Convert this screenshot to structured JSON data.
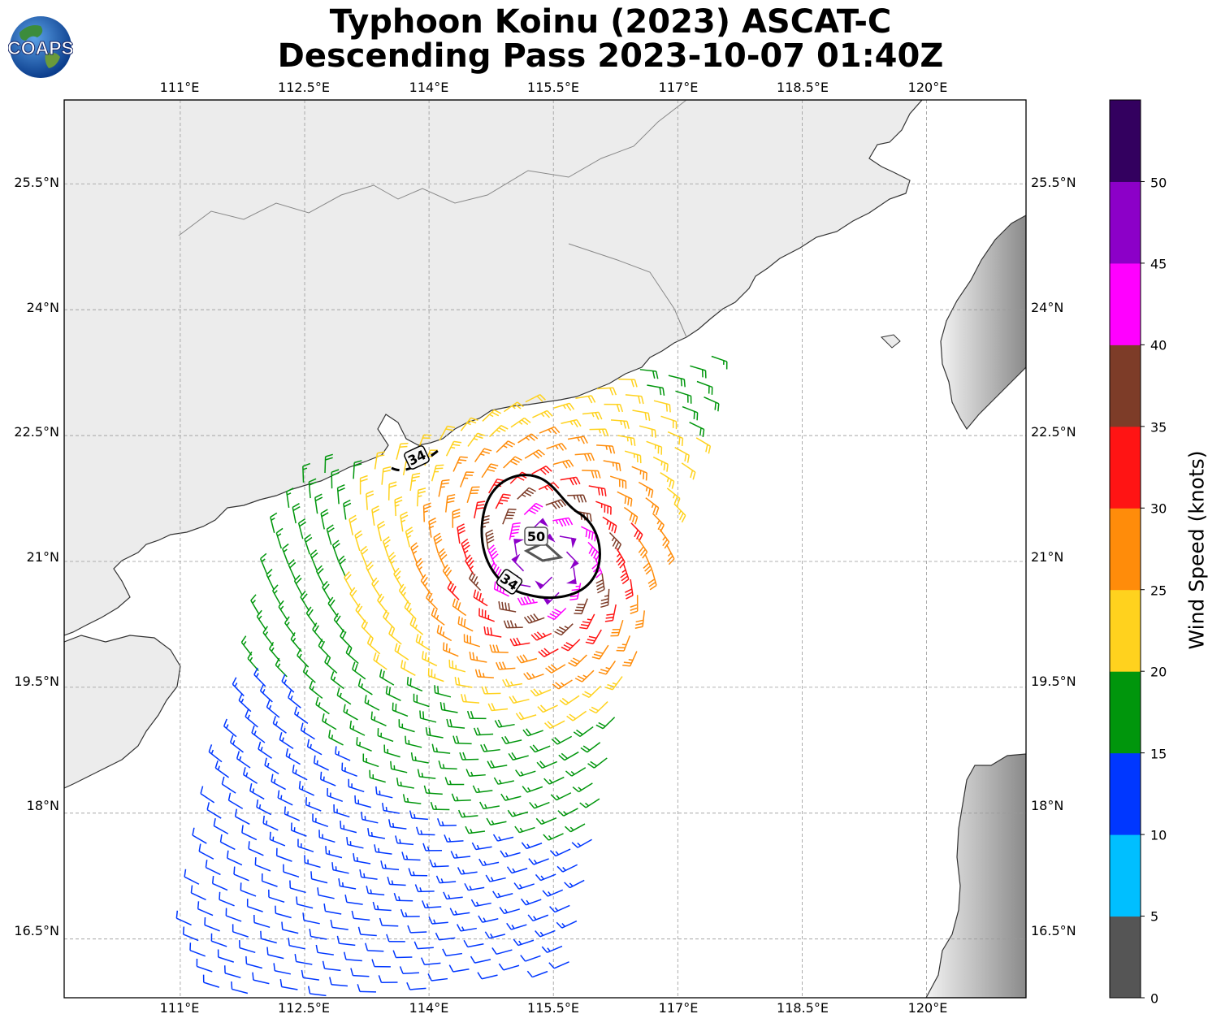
{
  "title": {
    "line1": "Typhoon Koinu (2023) ASCAT-C",
    "line2": "Descending Pass 2023-10-07 01:40Z"
  },
  "logo": {
    "text": "COAPS",
    "icon": "globe-icon"
  },
  "map": {
    "lon_ticks": [
      "111°E",
      "112.5°E",
      "114°E",
      "115.5°E",
      "117°E",
      "118.5°E",
      "120°E"
    ],
    "lat_ticks": [
      "25.5°N",
      "24°N",
      "22.5°N",
      "21°N",
      "19.5°N",
      "18°N",
      "16.5°N"
    ],
    "lon_range": [
      109.6,
      121.2
    ],
    "lat_range": [
      15.8,
      26.5
    ],
    "center": {
      "lon": 115.4,
      "lat": 21.0
    },
    "contours": [
      {
        "label": "34",
        "color": "#000000",
        "style": "solid"
      },
      {
        "label": "34",
        "color": "#000000",
        "style": "dashed"
      },
      {
        "label": "50",
        "color": "#555555",
        "style": "solid"
      }
    ],
    "land_color": "#eeeeee",
    "ocean_color": "#ffffff"
  },
  "colorbar": {
    "label": "Wind Speed (knots)",
    "ticks": [
      "0",
      "5",
      "10",
      "15",
      "20",
      "25",
      "30",
      "35",
      "40",
      "45",
      "50"
    ],
    "colors": [
      "#555555",
      "#00bfff",
      "#0037ff",
      "#00960c",
      "#ffd21e",
      "#ff8c0a",
      "#ff1414",
      "#7d3c28",
      "#ff00ff",
      "#8c00c8",
      "#33005f"
    ]
  }
}
